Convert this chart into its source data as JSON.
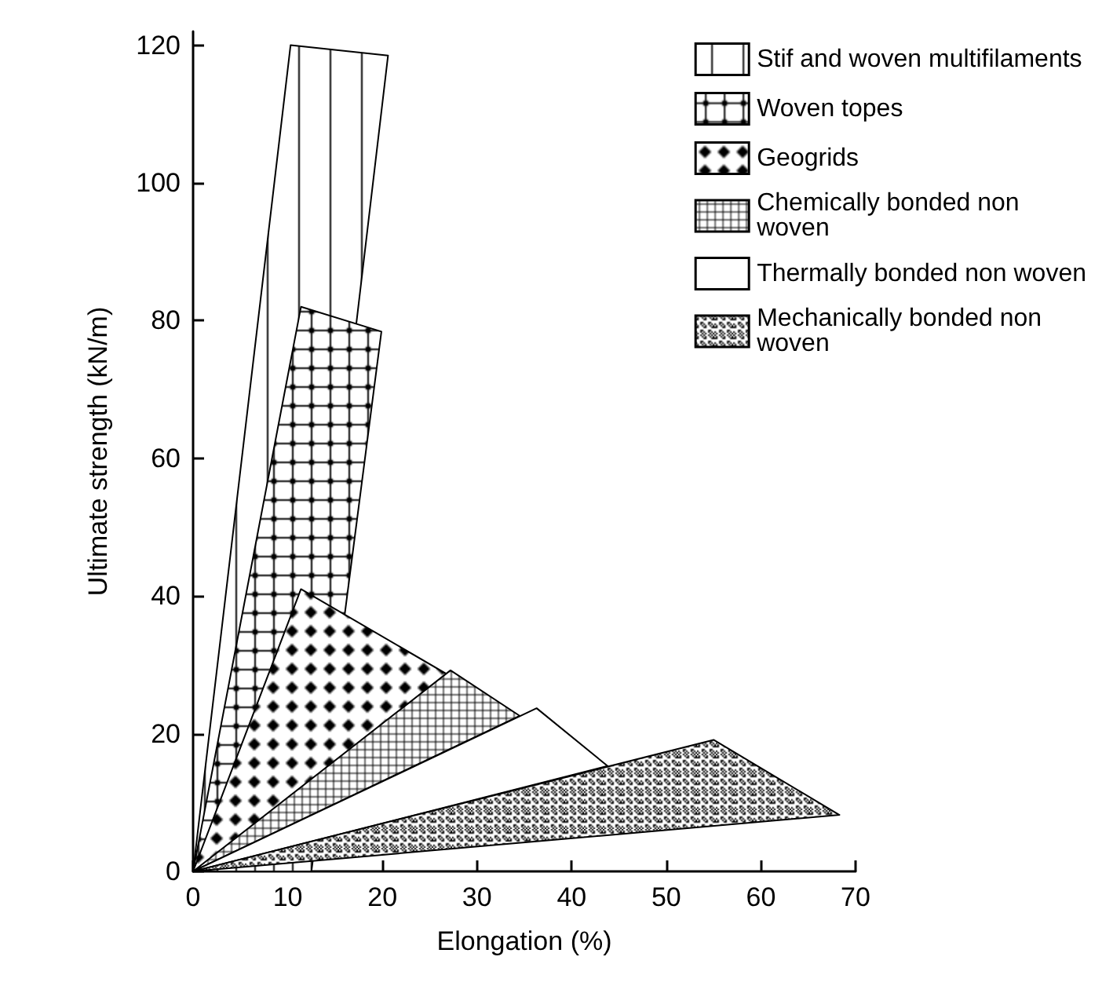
{
  "chart_data": {
    "type": "area",
    "xlabel": "Elongation (%)",
    "ylabel": "Ultimate strength (kN/m)",
    "xlim": [
      0,
      70
    ],
    "ylim": [
      0,
      122
    ],
    "xticks": [
      0,
      10,
      20,
      30,
      40,
      50,
      60,
      70
    ],
    "yticks": [
      0,
      20,
      40,
      60,
      80,
      100,
      120
    ],
    "grid": false,
    "legend": "top right",
    "series": [
      {
        "name": "Stif and woven multifilaments",
        "color": "#000000",
        "x": [
          0,
          10.3,
          20.6,
          10.4,
          0
        ],
        "values": [
          0,
          120,
          118.5,
          0,
          0
        ]
      },
      {
        "name": "Woven topes",
        "color": "#000000",
        "x": [
          0,
          11.4,
          19.9,
          12.5,
          0
        ],
        "values": [
          0,
          82,
          78.4,
          0,
          0
        ]
      },
      {
        "name": "Geogrids",
        "color": "#000000",
        "x": [
          0,
          11.4,
          33.5,
          0
        ],
        "values": [
          0,
          41,
          23.3,
          0
        ]
      },
      {
        "name": "Chemically bonded non woven",
        "color": "#000000",
        "x": [
          0,
          27.2,
          34.5,
          0
        ],
        "values": [
          0,
          29.2,
          22.6,
          0
        ]
      },
      {
        "name": "Thermally bonded non woven",
        "color": "#000000",
        "x": [
          0,
          36.3,
          43.8,
          0
        ],
        "values": [
          0,
          23.7,
          15.3,
          0
        ]
      },
      {
        "name": "Mechanically bonded non woven",
        "color": "#000000",
        "x": [
          0,
          55,
          68.3,
          0
        ],
        "values": [
          0,
          19.1,
          8.2,
          0
        ]
      }
    ]
  }
}
